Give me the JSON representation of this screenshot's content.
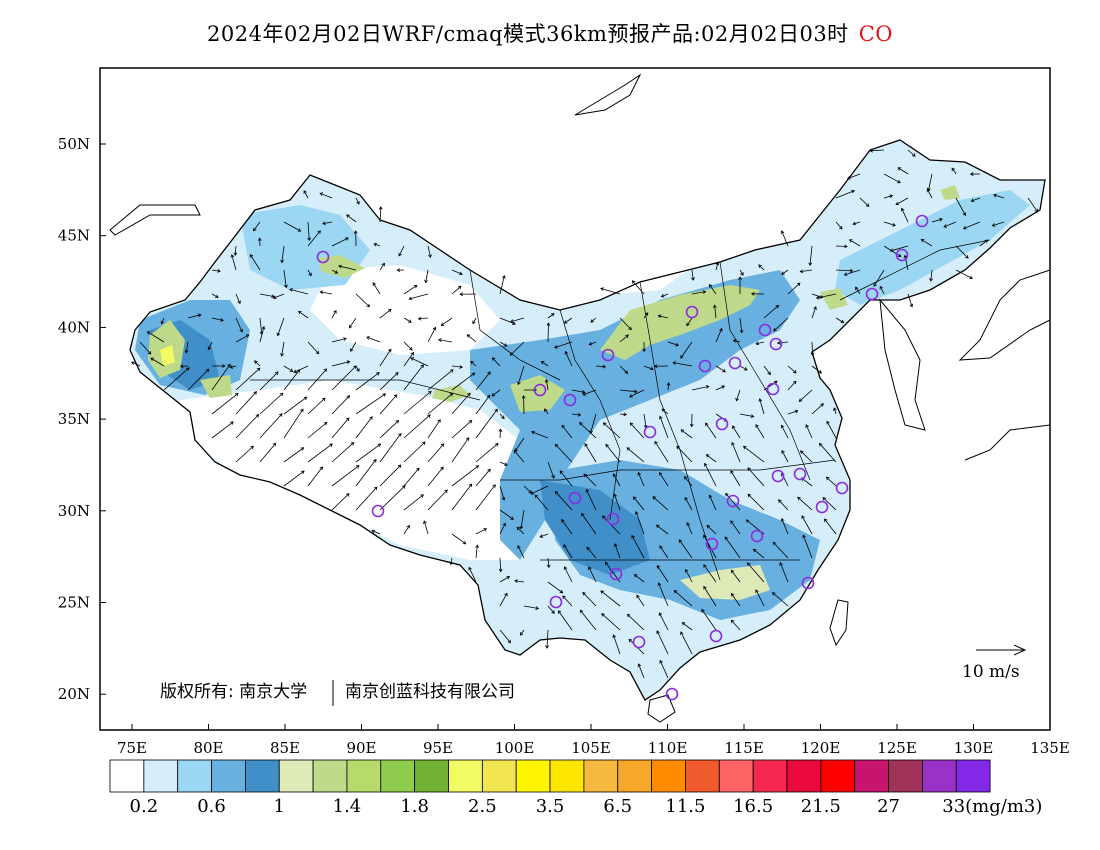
{
  "title": {
    "text": "2024年02月02日WRF/cmaq模式36km预报产品:02月02日03时",
    "pollutant": "CO"
  },
  "map": {
    "lon_ticks": [
      "75E",
      "80E",
      "85E",
      "90E",
      "95E",
      "100E",
      "105E",
      "110E",
      "115E",
      "120E",
      "125E",
      "130E",
      "135E"
    ],
    "lat_ticks": [
      "50N",
      "45N",
      "40N",
      "35N",
      "30N",
      "25N",
      "20N"
    ],
    "copyright_text": "版权所有: 南京大学",
    "copyright_text2": "南京创蓝科技有限公司",
    "wind_scale_label": "10 m/s",
    "city_marker_color": "#8a2be2"
  },
  "legend": {
    "colors": [
      "#ffffff",
      "#d6eefa",
      "#9bd6f2",
      "#68b0e0",
      "#418fc8",
      "#dde9b7",
      "#bfd98a",
      "#b6da6b",
      "#8fcc4d",
      "#70b032",
      "#f2fb64",
      "#f2e650",
      "#fff500",
      "#ffe600",
      "#f5b940",
      "#f7a829",
      "#ff8b00",
      "#f05a2d",
      "#ff6464",
      "#f52850",
      "#eb0a3c",
      "#ff0000",
      "#c8146e",
      "#a0325a",
      "#9b32c8",
      "#8228e6"
    ],
    "labels": [
      "0.2",
      "0.6",
      "1",
      "1.4",
      "1.8",
      "2.5",
      "3.5",
      "6.5",
      "11.5",
      "16.5",
      "21.5",
      "27",
      "33(mg/m3)"
    ]
  }
}
